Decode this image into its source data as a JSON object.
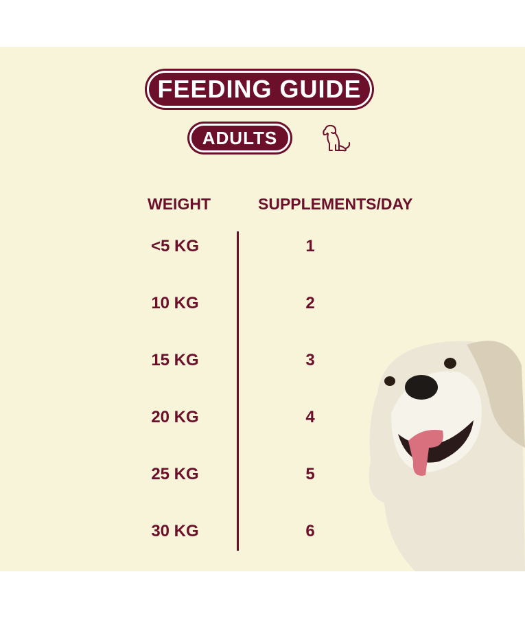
{
  "title": "FEEDING GUIDE",
  "badge": "ADULTS",
  "table": {
    "headers": [
      "WEIGHT",
      "SUPPLEMENTS/DAY"
    ],
    "rows": [
      [
        "<5 KG",
        "1"
      ],
      [
        "10 KG",
        "2"
      ],
      [
        "15 KG",
        "3"
      ],
      [
        "20 KG",
        "4"
      ],
      [
        "25 KG",
        "5"
      ],
      [
        "30 KG",
        "6"
      ]
    ]
  }
}
